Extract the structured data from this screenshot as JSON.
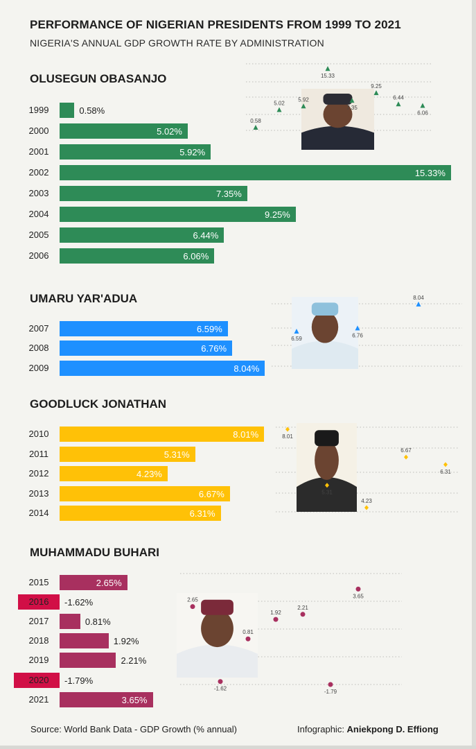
{
  "title": "PERFORMANCE OF NIGERIAN PRESIDENTS FROM 1999 TO 2021",
  "subtitle": "NIGERIA'S ANNUAL GDP GROWTH RATE BY ADMINISTRATION",
  "source": "Source:  World Bank Data - GDP Growth (% annual)",
  "credit_label": "Infographic: ",
  "credit_name": "Aniekpong D. Effiong",
  "colors": {
    "obasanjo": "#2e8b57",
    "yaradua": "#1e90ff",
    "jonathan": "#ffc107",
    "buhari": "#a8305f",
    "buhari_negative": "#d10f46"
  },
  "chart_data": [
    {
      "type": "bar",
      "title": "OLUSEGUN OBASANJO",
      "categories": [
        "1999",
        "2000",
        "2001",
        "2002",
        "2003",
        "2004",
        "2005",
        "2006"
      ],
      "values": [
        0.58,
        5.02,
        5.92,
        15.33,
        7.35,
        9.25,
        6.44,
        6.06
      ],
      "labels": [
        "0.58%",
        "5.02%",
        "5.92%",
        "15.33%",
        "7.35%",
        "9.25%",
        "6.44%",
        "6.06%"
      ],
      "scatter_labels": [
        "0.58",
        "5.02",
        "5.92",
        "15.33",
        "7.35",
        "9.25",
        "6.44",
        "6.06"
      ],
      "scatter_marker": "triangle"
    },
    {
      "type": "bar",
      "title": "UMARU YAR'ADUA",
      "categories": [
        "2007",
        "2008",
        "2009"
      ],
      "values": [
        6.59,
        6.76,
        8.04
      ],
      "labels": [
        "6.59%",
        "6.76%",
        "8.04%"
      ],
      "scatter_labels": [
        "6.59",
        "6.76",
        "8.04"
      ],
      "scatter_marker": "triangle"
    },
    {
      "type": "bar",
      "title": "GOODLUCK JONATHAN",
      "categories": [
        "2010",
        "2011",
        "2012",
        "2013",
        "2014"
      ],
      "values": [
        8.01,
        5.31,
        4.23,
        6.67,
        6.31
      ],
      "labels": [
        "8.01%",
        "5.31%",
        "4.23%",
        "6.67%",
        "6.31%"
      ],
      "scatter_labels": [
        "8.01",
        "5.31",
        "4.23",
        "6.67",
        "6.31"
      ],
      "scatter_marker": "diamond"
    },
    {
      "type": "bar",
      "title": "MUHAMMADU BUHARI",
      "categories": [
        "2015",
        "2016",
        "2017",
        "2018",
        "2019",
        "2020",
        "2021"
      ],
      "values": [
        2.65,
        -1.62,
        0.81,
        1.92,
        2.21,
        -1.79,
        3.65
      ],
      "labels": [
        "2.65%",
        "-1.62%",
        "0.81%",
        "1.92%",
        "2.21%",
        "-1.79%",
        "3.65%"
      ],
      "scatter_labels": [
        "2.65",
        "-1.62",
        "0.81",
        "1.92",
        "2.21",
        "-1.79",
        "3.65"
      ],
      "scatter_marker": "circle"
    }
  ]
}
